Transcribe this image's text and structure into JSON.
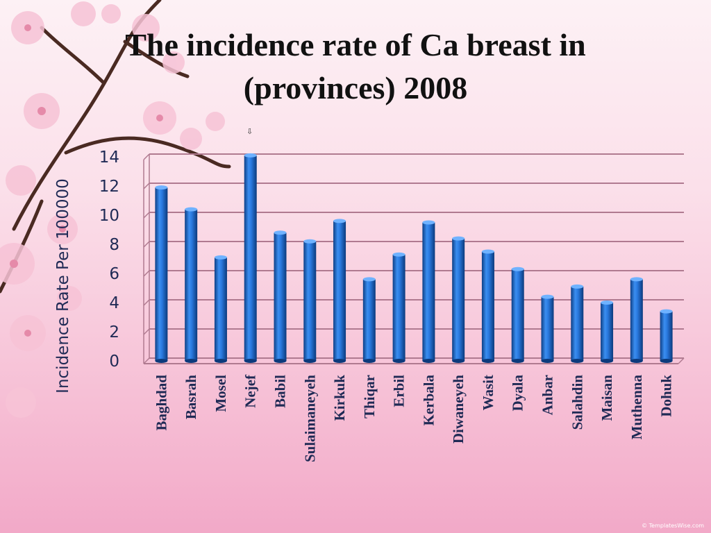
{
  "slide": {
    "title_line1": "The incidence rate of Ca breast in",
    "title_line2": "(provinces) 2008",
    "cursor_glyph": "⇩",
    "watermark": "© TemplatesWise.com"
  },
  "chart_data": {
    "type": "bar",
    "title": "The incidence rate of Ca breast in (provinces) 2008",
    "xlabel": "",
    "ylabel": "Incidence Rate  Per 100000",
    "ylim": [
      0,
      14
    ],
    "yticks": [
      0,
      2,
      4,
      6,
      8,
      10,
      12,
      14
    ],
    "grid": true,
    "categories": [
      "Baghdad",
      "Basrah",
      "Mosel",
      "Nejef",
      "Babil",
      "Sulaimaneyeh",
      "Kirkuk",
      "Thiqar",
      "Erbil",
      "Kerbala",
      "Diwaneyeh",
      "Wasit",
      "Dyala",
      "Anbar",
      "Salahdin",
      "Maisan",
      "Muthenna",
      "Dohuk"
    ],
    "values": [
      11.9,
      10.4,
      7.1,
      14.1,
      8.8,
      8.2,
      9.6,
      5.6,
      7.3,
      9.5,
      8.4,
      7.5,
      6.3,
      4.4,
      5.1,
      4.0,
      5.6,
      3.4
    ],
    "bar_color": "#1f6fd0",
    "grid_color": "#b07a90"
  }
}
